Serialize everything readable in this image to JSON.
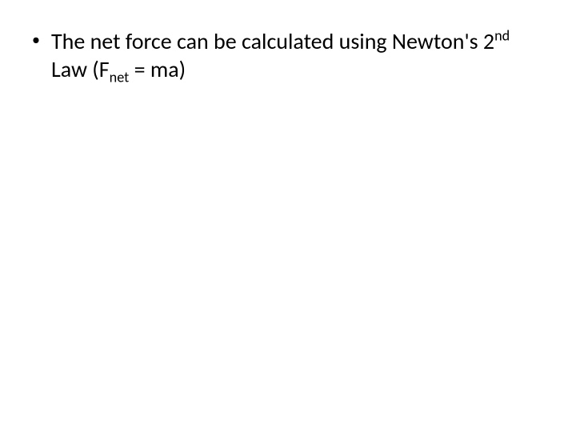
{
  "slide": {
    "background_color": "#ffffff",
    "text_color": "#000000",
    "font_family": "Calibri, Arial, sans-serif",
    "body_fontsize": 28,
    "bullet": {
      "marker": "•",
      "text_part1": "The net force can be calculated using Newton's 2",
      "superscript": "nd",
      "text_part2": " Law (F",
      "subscript": "net",
      "text_part3": " = ma)"
    }
  }
}
